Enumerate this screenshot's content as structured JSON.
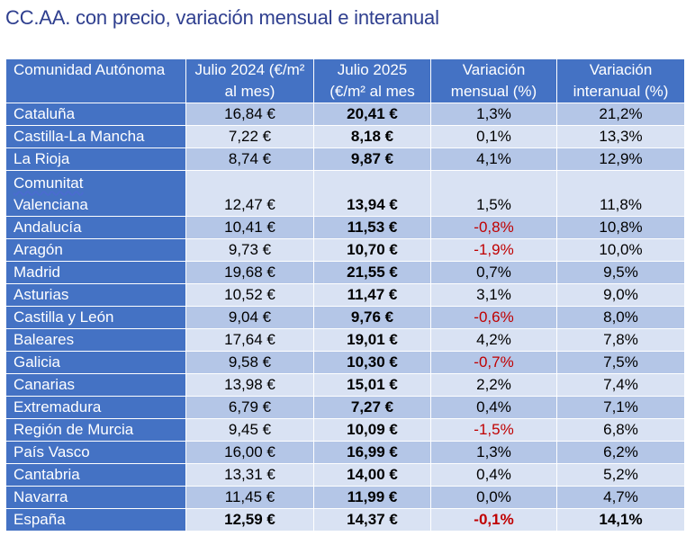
{
  "title": "CC.AA. con precio, variación mensual e interanual",
  "headers": {
    "col1": "Comunidad Autónoma",
    "col2": "Julio 2024 (€/m² al mes)",
    "col3": "Julio 2025 (€/m² al mes",
    "col4": "Variación mensual (%)",
    "col5": "Variación interanual (%)"
  },
  "rows": [
    {
      "name": "Cataluña",
      "jul2024": "16,84 €",
      "jul2025": "20,41 €",
      "mensual": "1,3%",
      "interanual": "21,2%"
    },
    {
      "name": "Castilla-La Mancha",
      "jul2024": "7,22 €",
      "jul2025": "8,18 €",
      "mensual": "0,1%",
      "interanual": "13,3%"
    },
    {
      "name": "La Rioja",
      "jul2024": "8,74 €",
      "jul2025": "9,87 €",
      "mensual": "4,1%",
      "interanual": "12,9%"
    },
    {
      "name_line1": "Comunitat",
      "name_line2": "Valenciana",
      "jul2024": "12,47 €",
      "jul2025": "13,94 €",
      "mensual": "1,5%",
      "interanual": "11,8%"
    },
    {
      "name": "Andalucía",
      "jul2024": "10,41 €",
      "jul2025": "11,53 €",
      "mensual": "-0,8%",
      "interanual": "10,8%"
    },
    {
      "name": "Aragón",
      "jul2024": "9,73 €",
      "jul2025": "10,70 €",
      "mensual": "-1,9%",
      "interanual": "10,0%"
    },
    {
      "name": "Madrid",
      "jul2024": "19,68 €",
      "jul2025": "21,55 €",
      "mensual": "0,7%",
      "interanual": "9,5%"
    },
    {
      "name": "Asturias",
      "jul2024": "10,52 €",
      "jul2025": "11,47 €",
      "mensual": "3,1%",
      "interanual": "9,0%"
    },
    {
      "name": "Castilla y León",
      "jul2024": "9,04 €",
      "jul2025": "9,76 €",
      "mensual": "-0,6%",
      "interanual": "8,0%"
    },
    {
      "name": "Baleares",
      "jul2024": "17,64 €",
      "jul2025": "19,01 €",
      "mensual": "4,2%",
      "interanual": "7,8%"
    },
    {
      "name": "Galicia",
      "jul2024": "9,58 €",
      "jul2025": "10,30 €",
      "mensual": "-0,7%",
      "interanual": "7,5%"
    },
    {
      "name": "Canarias",
      "jul2024": "13,98 €",
      "jul2025": "15,01 €",
      "mensual": "2,2%",
      "interanual": "7,4%"
    },
    {
      "name": "Extremadura",
      "jul2024": "6,79 €",
      "jul2025": "7,27 €",
      "mensual": "0,4%",
      "interanual": "7,1%"
    },
    {
      "name": "Región de Murcia",
      "jul2024": "9,45 €",
      "jul2025": "10,09 €",
      "mensual": "-1,5%",
      "interanual": "6,8%"
    },
    {
      "name": "País Vasco",
      "jul2024": "16,00 €",
      "jul2025": "16,99 €",
      "mensual": "1,3%",
      "interanual": "6,2%"
    },
    {
      "name": "Cantabria",
      "jul2024": "13,31 €",
      "jul2025": "14,00 €",
      "mensual": "0,4%",
      "interanual": "5,2%"
    },
    {
      "name": "Navarra",
      "jul2024": "11,45 €",
      "jul2025": "11,99 €",
      "mensual": "0,0%",
      "interanual": "4,7%"
    },
    {
      "name": "España",
      "jul2024": "12,59 €",
      "jul2025": "14,37 €",
      "mensual": "-0,1%",
      "interanual": "14,1%"
    }
  ],
  "colors": {
    "header_bg": "#4472c4",
    "row_dark": "#b4c6e7",
    "row_light": "#d9e2f3",
    "negative": "#c00000",
    "title": "#2f3f8f"
  }
}
